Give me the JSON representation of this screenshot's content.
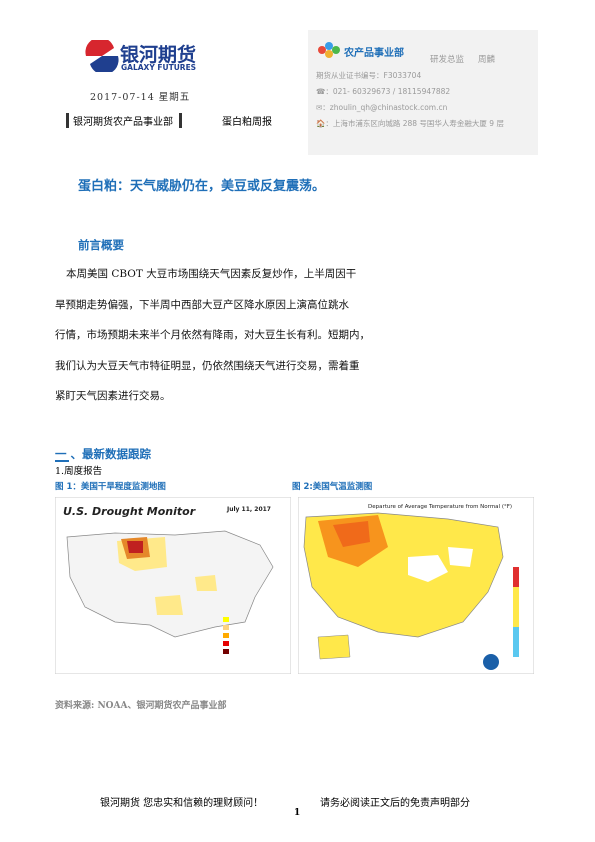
{
  "header": {
    "logo_name": "银河期货",
    "logo_en": "GALAXY FUTURES",
    "date": "2017-07-14  星期五",
    "department": "银河期货农产品事业部",
    "report": "蛋白粕周报"
  },
  "contact": {
    "unit": "农产品事业部",
    "role": "研发总监",
    "name": "周麟",
    "license": "期货从业证书编号：F3033704",
    "phone": "☎：021- 60329673 / 18115947882",
    "email": "✉：zhoulin_qh@chinastock.com.cn",
    "address": "🏠：上海市浦东区向城路 288 号国华人寿金融大厦 9 层"
  },
  "title": "蛋白粕：天气威胁仍在，美豆或反复震荡。",
  "summary": {
    "heading": "前言概要",
    "lines": [
      "本周美国  CBOT  大豆市场围绕天气因素反复炒作，上半周因干",
      "旱预期走势偏强，下半周中西部大豆产区降水原因上演高位跳水",
      "行情，市场预期未来半个月依然有降雨，对大豆生长有利。短期内，",
      "我们认为大豆天气市特征明显，仍依然围绕天气进行交易，需着重",
      "紧盯天气因素进行交易。"
    ]
  },
  "section": {
    "heading": "一 、最新数据跟踪",
    "sub": "1.周度报告",
    "fig1": {
      "caption": "图 1：美国干旱程度监测地图",
      "map_title": "U.S. Drought Monitor",
      "map_date": "July 11, 2017"
    },
    "fig2": {
      "caption": "图 2:美国气温监测图",
      "map_title": "Departure of Average Temperature from Normal (°F)"
    },
    "source": "资料来源: NOAA、银河期货农产品事业部"
  },
  "footer": {
    "left": "银河期货  您忠实和信赖的理财顾问！",
    "right": "请务必阅读正文后的免责声明部分",
    "page": "1"
  }
}
